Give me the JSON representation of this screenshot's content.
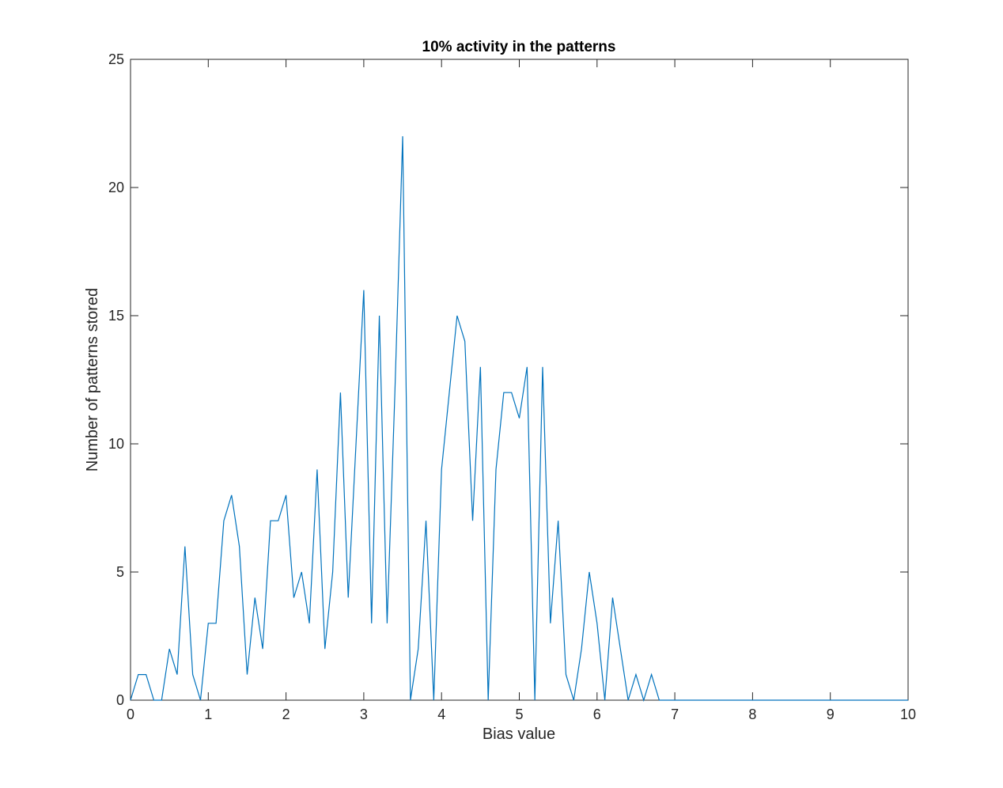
{
  "chart_data": {
    "type": "line",
    "title": "10% activity in the patterns",
    "xlabel": "Bias value",
    "ylabel": "Number of patterns stored",
    "xlim": [
      0,
      10
    ],
    "ylim": [
      0,
      25
    ],
    "xticks": [
      0,
      1,
      2,
      3,
      4,
      5,
      6,
      7,
      8,
      9,
      10
    ],
    "yticks": [
      0,
      5,
      10,
      15,
      20,
      25
    ],
    "grid": false,
    "line_color": "#0072BD",
    "x_step": 0.1,
    "series": [
      {
        "values": [
          0,
          1,
          1,
          0,
          0,
          2,
          1,
          6,
          1,
          0,
          3,
          3,
          7,
          8,
          6,
          1,
          4,
          2,
          7,
          7,
          8,
          4,
          5,
          3,
          9,
          2,
          5,
          12,
          4,
          10,
          16,
          3,
          15,
          3,
          12,
          22,
          0,
          2,
          7,
          0,
          9,
          12,
          15,
          14,
          7,
          13,
          0,
          9,
          12,
          12,
          11,
          13,
          0,
          13,
          3,
          7,
          1,
          0,
          2,
          5,
          3,
          0,
          4,
          2,
          0,
          1,
          0,
          1,
          0,
          0,
          0,
          0,
          0,
          0,
          0,
          0,
          0,
          0,
          0,
          0,
          0,
          0,
          0,
          0,
          0,
          0,
          0,
          0,
          0,
          0,
          0,
          0,
          0,
          0,
          0,
          0,
          0,
          0,
          0,
          0,
          0
        ]
      }
    ]
  }
}
